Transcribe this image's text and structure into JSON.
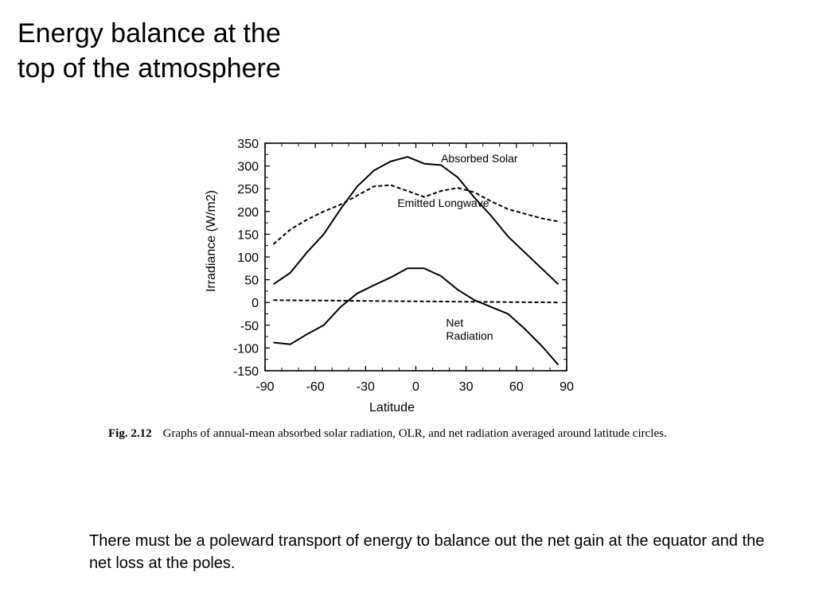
{
  "slide": {
    "title_lines": [
      "Energy balance at the",
      "top of the atmosphere"
    ],
    "body_text": "There must be a poleward transport of energy to balance out the net gain at  the equator and the net loss at the poles."
  },
  "figure": {
    "label": "Fig. 2.12",
    "caption": "Graphs of annual-mean absorbed solar radiation, OLR, and net radiation averaged around latitude circles."
  },
  "chart_data": {
    "type": "line",
    "xlabel": "Latitude",
    "ylabel": "Irradiance (W/m2)",
    "xlim": [
      -90,
      90
    ],
    "ylim": [
      -150,
      350
    ],
    "xticks": [
      -90,
      -60,
      -30,
      0,
      30,
      60,
      90
    ],
    "yticks": [
      350,
      300,
      250,
      200,
      150,
      100,
      50,
      0,
      -50,
      -100,
      -150
    ],
    "grid": false,
    "series": [
      {
        "name": "Absorbed Solar",
        "style": "solid",
        "x": [
          -85,
          -75,
          -65,
          -55,
          -45,
          -35,
          -25,
          -15,
          -5,
          5,
          15,
          25,
          35,
          45,
          55,
          65,
          75,
          85
        ],
        "y": [
          40,
          65,
          110,
          150,
          205,
          255,
          290,
          310,
          320,
          305,
          302,
          275,
          230,
          190,
          145,
          110,
          75,
          40
        ]
      },
      {
        "name": "Emitted Longwave",
        "style": "dashed",
        "x": [
          -85,
          -75,
          -65,
          -55,
          -45,
          -35,
          -25,
          -15,
          -5,
          5,
          15,
          25,
          35,
          45,
          55,
          65,
          75,
          85
        ],
        "y": [
          128,
          160,
          182,
          200,
          215,
          235,
          255,
          258,
          245,
          232,
          245,
          252,
          242,
          222,
          205,
          195,
          185,
          178
        ]
      },
      {
        "name": "Net Radiation",
        "style": "solid",
        "x": [
          -85,
          -75,
          -65,
          -55,
          -45,
          -35,
          -25,
          -15,
          -5,
          5,
          15,
          25,
          35,
          45,
          55,
          65,
          75,
          85
        ],
        "y": [
          -88,
          -92,
          -70,
          -50,
          -10,
          20,
          38,
          55,
          75,
          75,
          58,
          28,
          5,
          -10,
          -25,
          -58,
          -95,
          -137
        ]
      },
      {
        "name": "",
        "style": "dashed",
        "x": [
          -85,
          85
        ],
        "y": [
          5,
          0
        ]
      }
    ],
    "annotations": [
      {
        "text": "Absorbed Solar",
        "x": 15,
        "y": 308
      },
      {
        "text": "Emitted Longwave",
        "x": -11,
        "y": 210
      },
      {
        "text": "Net",
        "x": 18,
        "y": -53
      },
      {
        "text": "Radiation",
        "x": 18,
        "y": -82
      }
    ]
  }
}
